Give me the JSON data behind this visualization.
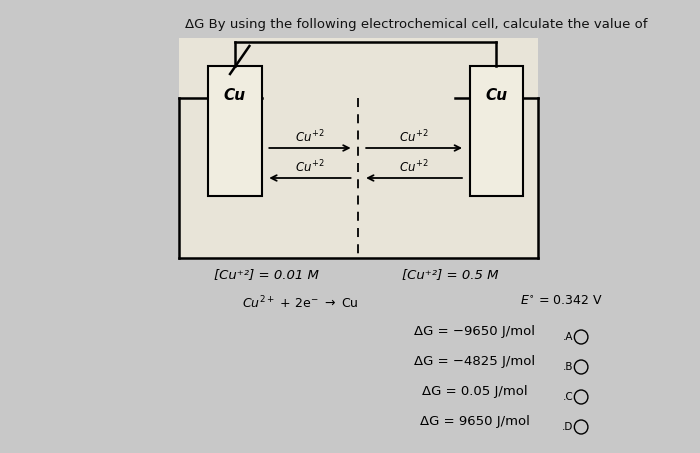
{
  "bg_color": "#c8c8c8",
  "cell_bg": "#e8e8e0",
  "title_text": "ΔG By using the following electrochemical cell, calculate the value of",
  "title_fontsize": 9.5,
  "title_color": "#111111",
  "option_texts": [
    "ΔG = −9650 J/mol",
    "ΔG = −4825 J/mol",
    "ΔG = 0.05 J/mol",
    "ΔG = 9650 J/mol"
  ],
  "option_labels": [
    "A",
    "B",
    "C",
    "D"
  ],
  "left_label": "[Cu⁺²] = 0.01 M",
  "right_label": "[Cu⁺²] = 0.5 M",
  "left_metal": "Cu",
  "right_metal": "Cu"
}
